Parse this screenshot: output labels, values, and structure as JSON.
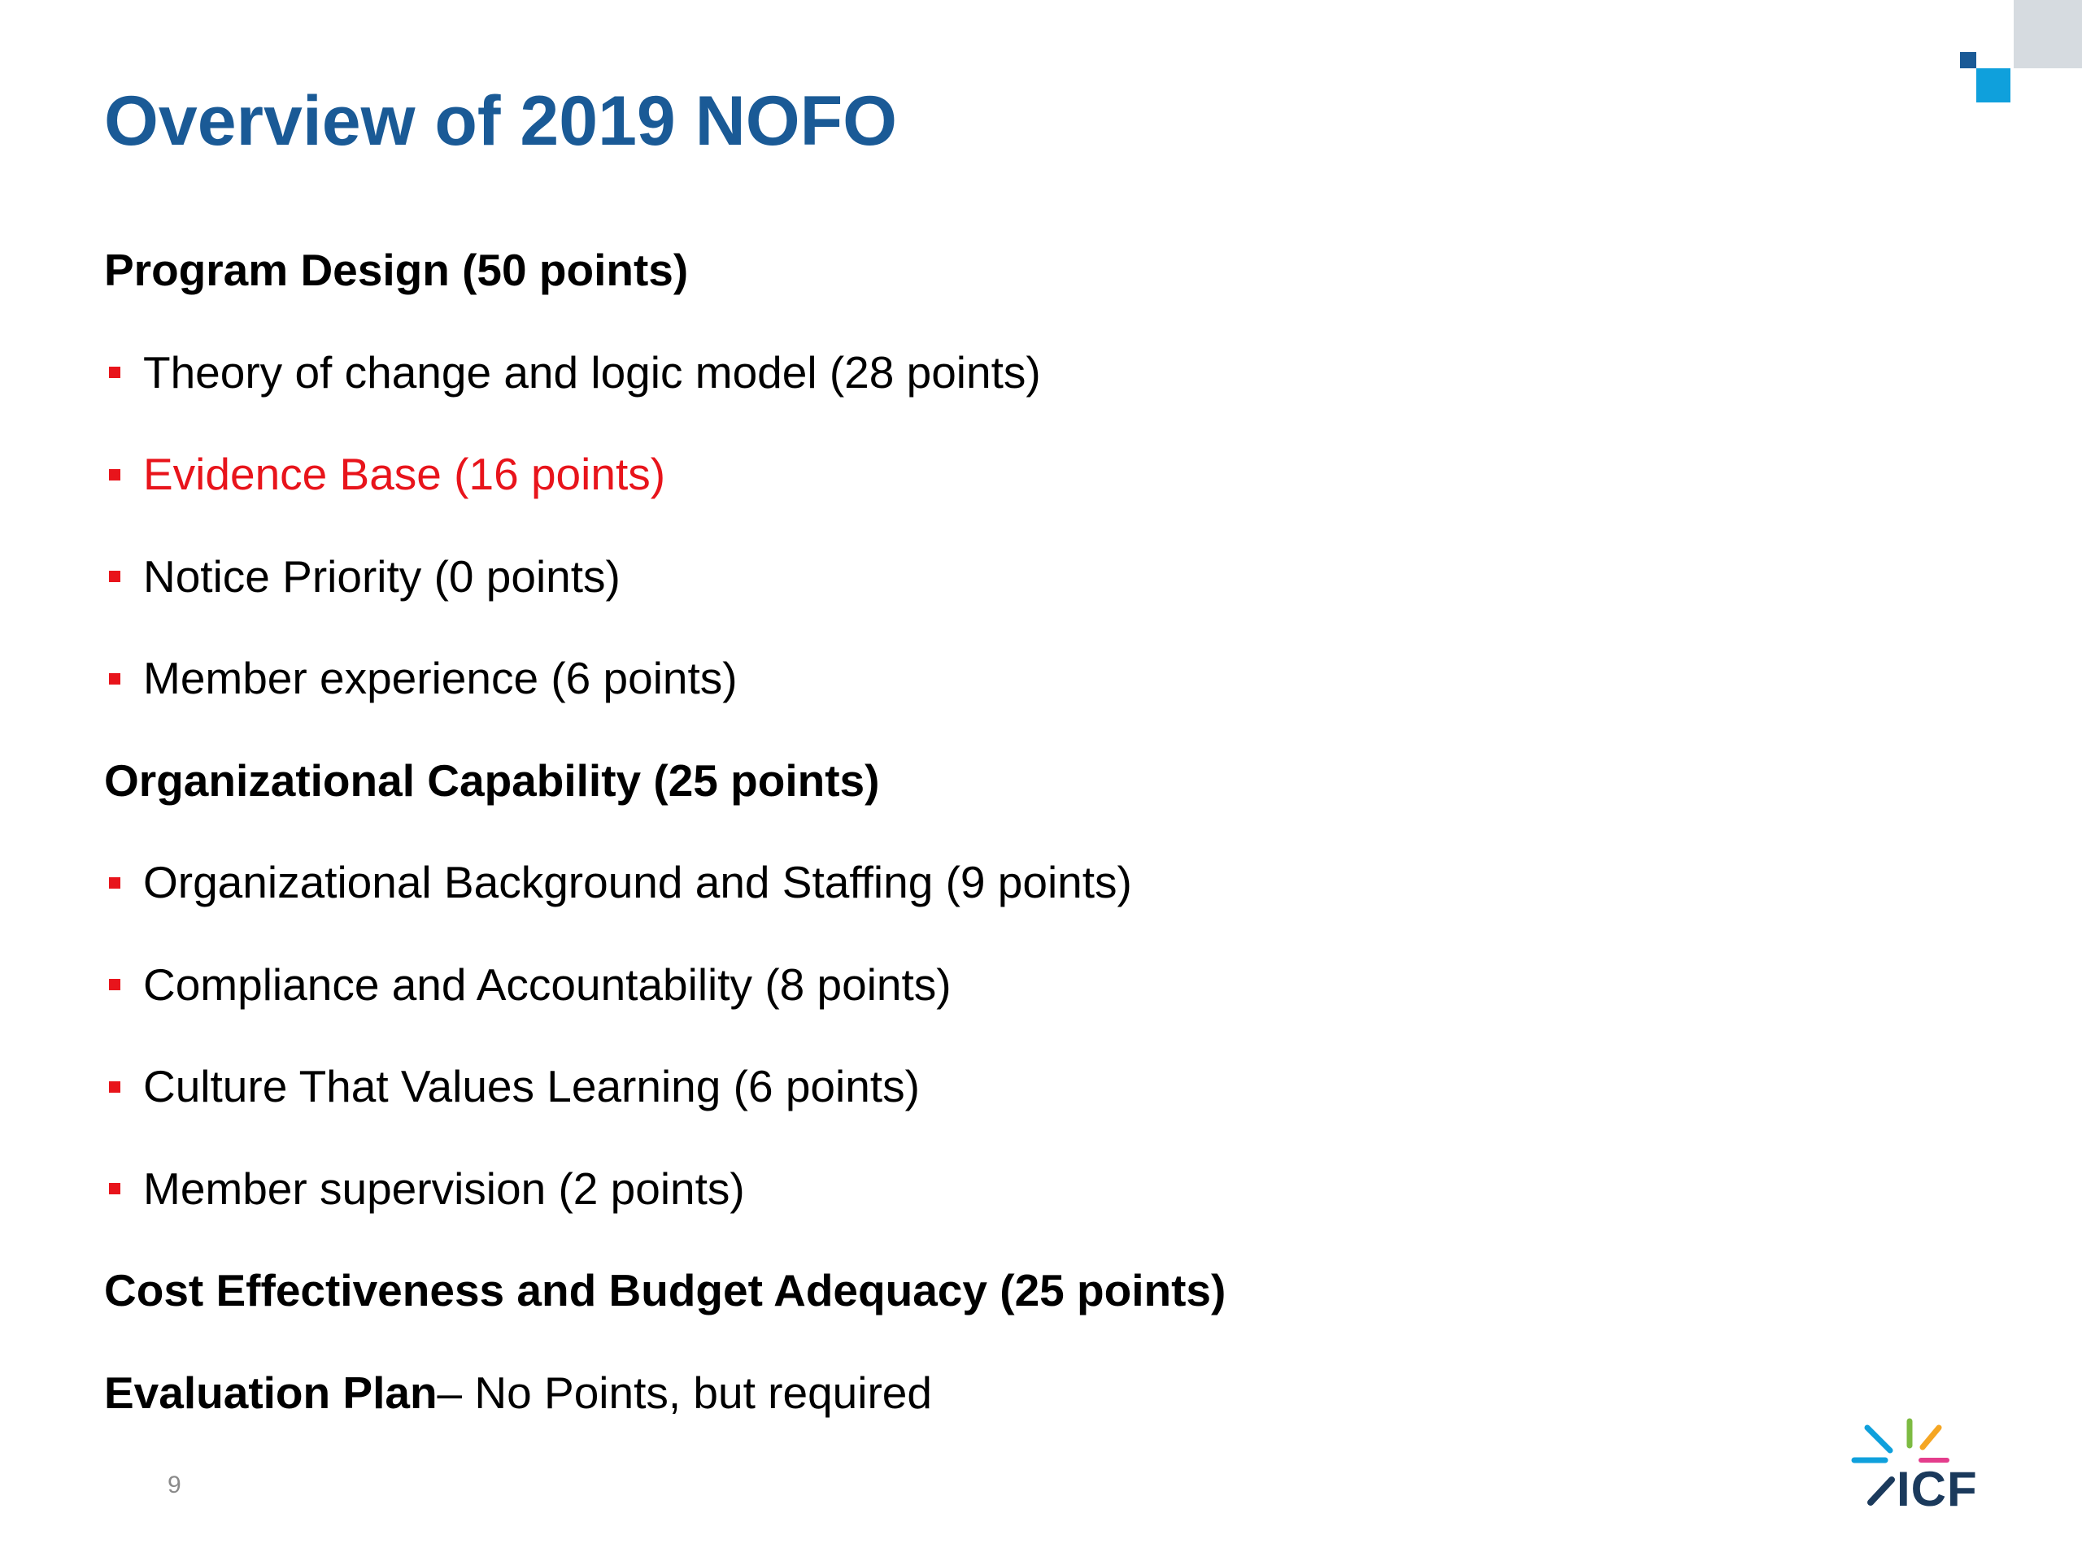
{
  "slide": {
    "title": "Overview of 2019 NOFO",
    "page_number": "9"
  },
  "colors": {
    "title": "#1a5a96",
    "highlight": "#e8141b",
    "bullet": "#e8141b",
    "text": "#000000",
    "corner_gray": "#d6dbe0",
    "corner_dark": "#1a5a96",
    "corner_blue": "#0fa0dc",
    "logo_text": "#1b3a5c"
  },
  "sections": [
    {
      "heading": "Program Design (50 points)",
      "items": [
        {
          "label": "Theory of change and logic model (28 points)",
          "highlight": false
        },
        {
          "label": "Evidence Base (16 points)",
          "highlight": true
        },
        {
          "label": "Notice Priority (0 points)",
          "highlight": false
        },
        {
          "label": "Member experience (6 points)",
          "highlight": false
        }
      ]
    },
    {
      "heading": "Organizational Capability (25 points)",
      "items": [
        {
          "label": "Organizational Background and Staffing (9 points)",
          "highlight": false
        },
        {
          "label": "Compliance and Accountability (8 points)",
          "highlight": false
        },
        {
          "label": "Culture That Values Learning (6 points)",
          "highlight": false
        },
        {
          "label": "Member supervision (2 points)",
          "highlight": false
        }
      ]
    },
    {
      "heading": "Cost Effectiveness and Budget Adequacy (25 points)",
      "items": []
    }
  ],
  "evaluation": {
    "heading": "Evaluation Plan",
    "rest": " – No Points, but required"
  },
  "logo": {
    "text": "ICF",
    "icon": "icf-burst-logo-icon"
  }
}
